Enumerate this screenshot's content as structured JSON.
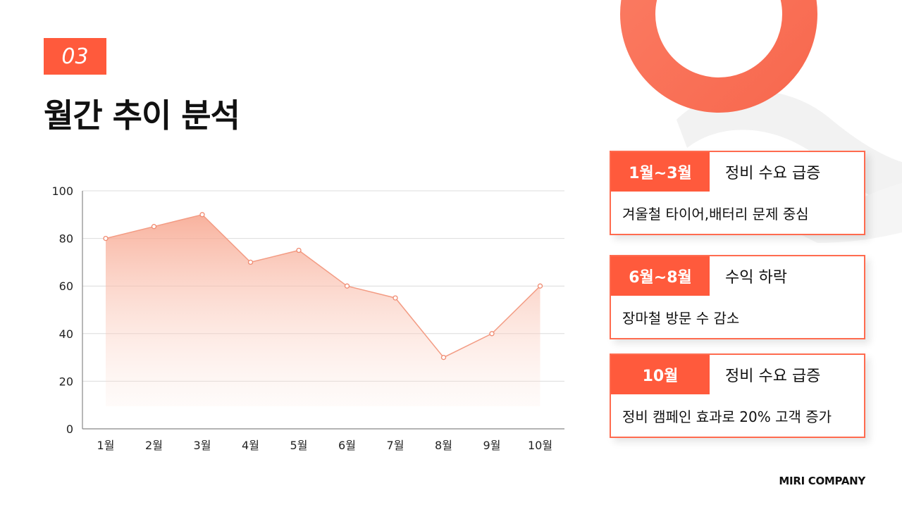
{
  "header": {
    "section_number": "03",
    "title": "월간 추이 분석"
  },
  "colors": {
    "accent": "#ff5a3c",
    "line": "#f39c84",
    "area_top": "#f7a48c",
    "ring": "#fb7c63"
  },
  "chart_data": {
    "type": "area",
    "categories": [
      "1월",
      "2월",
      "3월",
      "4월",
      "5월",
      "6월",
      "7월",
      "8월",
      "9월",
      "10월"
    ],
    "values": [
      80,
      85,
      90,
      70,
      75,
      60,
      55,
      30,
      40,
      60
    ],
    "y_ticks": [
      "0",
      "20",
      "40",
      "60",
      "80",
      "100"
    ],
    "ylim": [
      0,
      100
    ],
    "grid": true,
    "title": "",
    "xlabel": "",
    "ylabel": ""
  },
  "cards": [
    {
      "period": "1월~3월",
      "title": "정비 수요 급증",
      "desc": "겨울철 타이어,배터리 문제 중심"
    },
    {
      "period": "6월~8월",
      "title": "수익 하락",
      "desc": "장마철 방문 수 감소"
    },
    {
      "period": "10월",
      "title": "정비 수요 급증",
      "desc": "정비 캠페인 효과로 20% 고객 증가"
    }
  ],
  "footer": {
    "brand": "MIRI COMPANY"
  }
}
